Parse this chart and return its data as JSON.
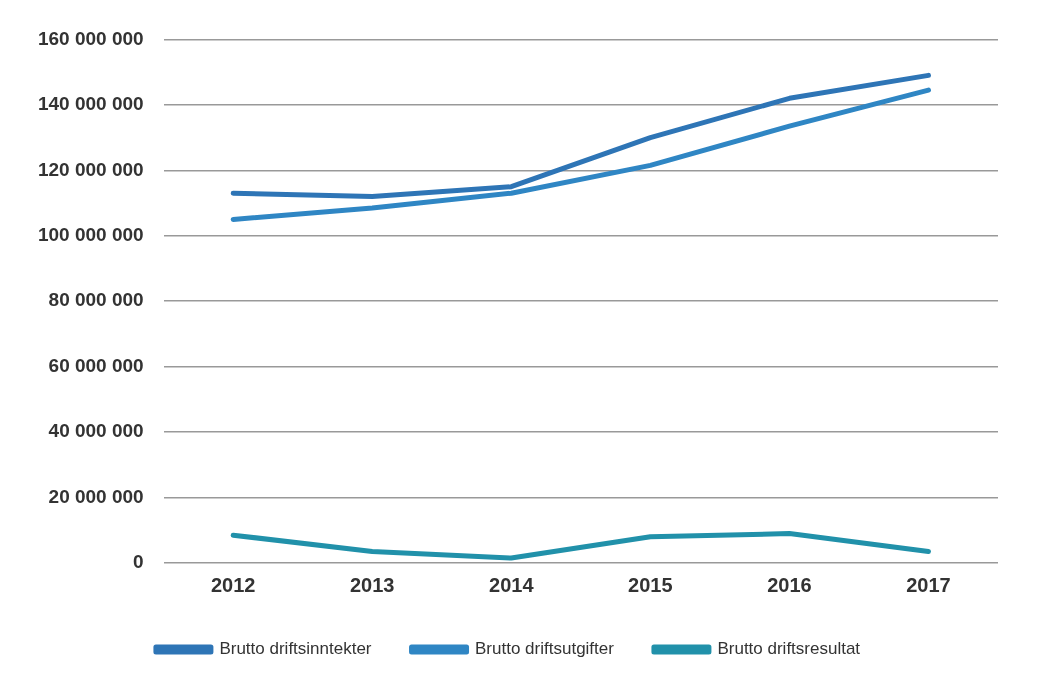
{
  "chart_data": {
    "type": "line",
    "categories": [
      "2012",
      "2013",
      "2014",
      "2015",
      "2016",
      "2017"
    ],
    "series": [
      {
        "name": "Brutto driftsinntekter",
        "color": "#2e75b6",
        "values": [
          113000000,
          112000000,
          115000000,
          130000000,
          142000000,
          149000000
        ]
      },
      {
        "name": "Brutto driftsutgifter",
        "color": "#2f86c4",
        "values": [
          105000000,
          108500000,
          113000000,
          121500000,
          133500000,
          144500000
        ]
      },
      {
        "name": "Brutto driftsresultat",
        "color": "#2191aa",
        "values": [
          8500000,
          3500000,
          1500000,
          8000000,
          9000000,
          3500000
        ]
      }
    ],
    "ylim": [
      0,
      160000000
    ],
    "yticks": [
      0,
      20000000,
      40000000,
      60000000,
      80000000,
      100000000,
      120000000,
      140000000,
      160000000
    ],
    "grid": "y",
    "legend": "bottom",
    "marker": "none",
    "line_style": "solid"
  }
}
